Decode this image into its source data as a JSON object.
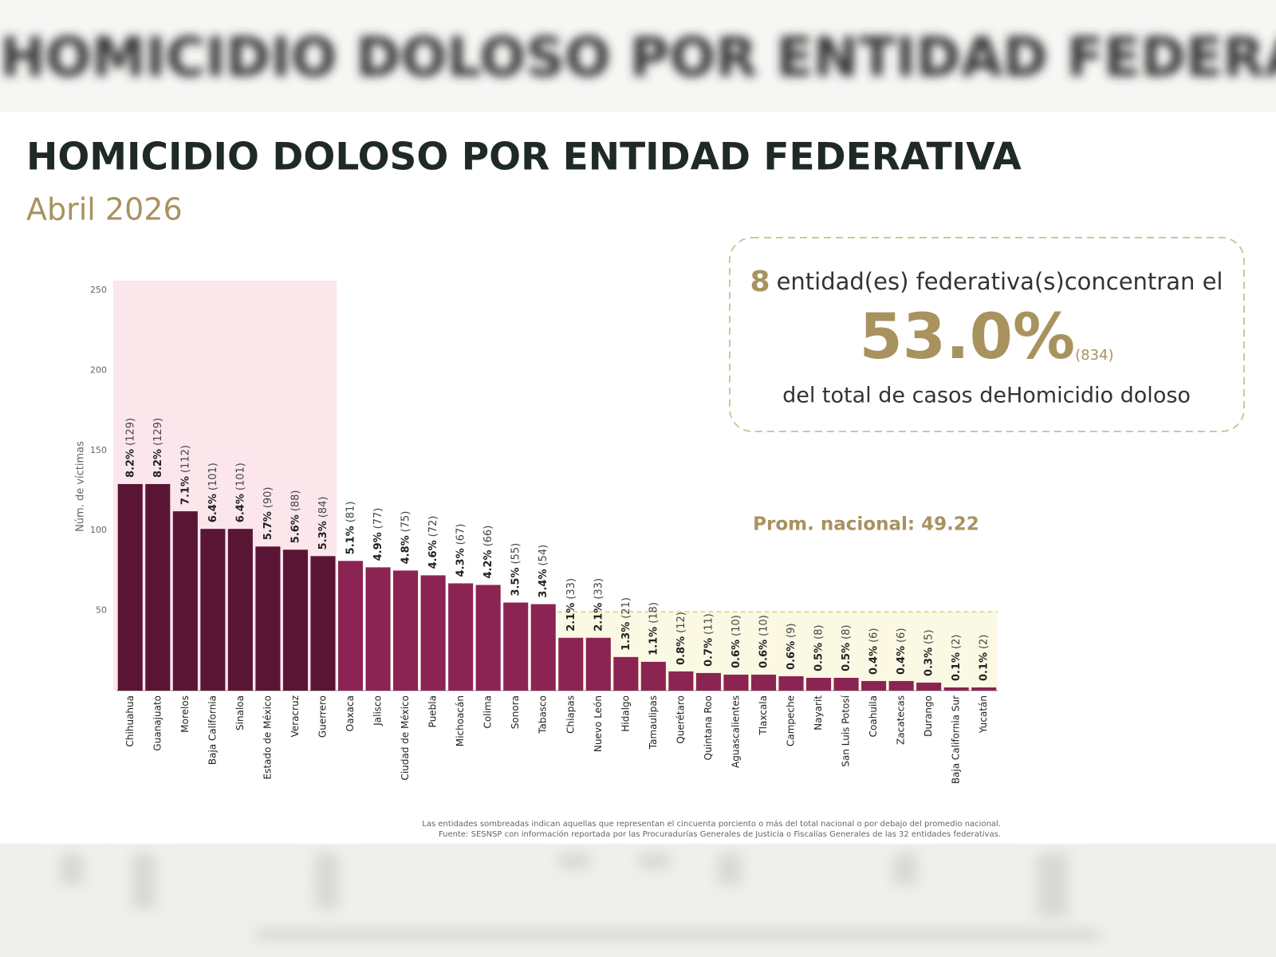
{
  "chart_data": {
    "type": "bar",
    "title": "HOMICIDIO DOLOSO POR ENTIDAD FEDERATIVA",
    "subtitle": "Abril 2026",
    "y_label": "Núm. de víctimas",
    "categories": [
      "Chihuahua",
      "Guanajuato",
      "Morelos",
      "Baja California",
      "Sinaloa",
      "Estado de México",
      "Veracruz",
      "Guerrero",
      "Oaxaca",
      "Jalisco",
      "Ciudad de México",
      "Puebla",
      "Michoacán",
      "Colima",
      "Sonora",
      "Tabasco",
      "Chiapas",
      "Nuevo León",
      "Hidalgo",
      "Tamaulipas",
      "Querétaro",
      "Quintana Roo",
      "Aguascalientes",
      "Tlaxcala",
      "Campeche",
      "Nayarit",
      "San Luis Potosí",
      "Coahuila",
      "Zacatecas",
      "Durango",
      "Baja California Sur",
      "Yucatán"
    ],
    "values": [
      129,
      129,
      112,
      101,
      101,
      90,
      88,
      84,
      81,
      77,
      75,
      72,
      67,
      66,
      55,
      54,
      33,
      33,
      21,
      18,
      12,
      11,
      10,
      10,
      9,
      8,
      8,
      6,
      6,
      5,
      2,
      2
    ],
    "value_labels": [
      "(129)",
      "(129)",
      "(112)",
      "(101)",
      "(101)",
      "(90)",
      "(88)",
      "(84)",
      "(81)",
      "(77)",
      "(75)",
      "(72)",
      "(67)",
      "(66)",
      "(55)",
      "(54)",
      "(33)",
      "(33)",
      "(21)",
      "(18)",
      "(12)",
      "(11)",
      "(10)",
      "(10)",
      "(9)",
      "(8)",
      "(8)",
      "(6)",
      "(6)",
      "(5)",
      "(2)",
      "(2)"
    ],
    "share_labels": [
      "8.2%",
      "8.2%",
      "7.1%",
      "6.4%",
      "6.4%",
      "5.7%",
      "5.6%",
      "5.3%",
      "5.1%",
      "4.9%",
      "4.8%",
      "4.6%",
      "4.3%",
      "4.2%",
      "3.5%",
      "3.4%",
      "2.1%",
      "2.1%",
      "1.3%",
      "1.1%",
      "0.8%",
      "0.7%",
      "0.6%",
      "0.6%",
      "0.6%",
      "0.5%",
      "0.5%",
      "0.4%",
      "0.4%",
      "0.3%",
      "0.1%",
      "0.1%"
    ],
    "colors": {
      "concentrated": "#5a1535",
      "other": "#8b2452",
      "concentrated_shade": "#fbe6ec",
      "below_average_shade": "#fbf9e4"
    },
    "ylim": [
      0,
      250
    ],
    "yticks": [
      50,
      100,
      150,
      200,
      250
    ],
    "average": {
      "value": 49.22,
      "label": "Prom. nacional: 49.22"
    },
    "concentration": {
      "count": 8,
      "text": "entidad(es) federativa(s)concentran el",
      "percent": {
        "value": 53.0,
        "label": "53.0%"
      },
      "cases": {
        "value": 834,
        "label": "(834)"
      },
      "footer": "del total de casos deHomicidio doloso"
    },
    "notes": [
      "Las entidades sombreadas indican aquellas que representan el cincuenta porciento o más del total nacional o por debajo del promedio nacional.",
      "Fuente: SESNSP con información reportada por las Procuradurías Generales de Justicia o Fiscalías Generales de las 32 entidades federativas."
    ]
  }
}
